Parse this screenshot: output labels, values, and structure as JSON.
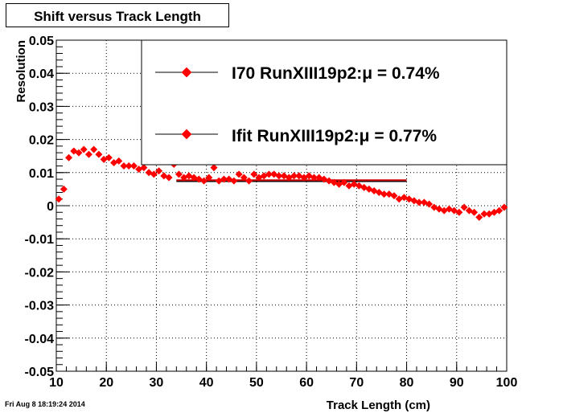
{
  "chart_data": {
    "type": "scatter",
    "title": "Shift versus Track Length",
    "xlabel": "Track Length (cm)",
    "ylabel": "Resolution",
    "xlim": [
      10,
      100
    ],
    "ylim": [
      -0.05,
      0.05
    ],
    "xticks": [
      "10",
      "20",
      "30",
      "40",
      "50",
      "60",
      "70",
      "80",
      "90",
      "100"
    ],
    "yticks": [
      "-0.05",
      "-0.04",
      "-0.03",
      "-0.02",
      "-0.01",
      "0",
      "0.01",
      "0.02",
      "0.03",
      "0.04",
      "0.05"
    ],
    "grid": true,
    "legend_position": "top-right",
    "datestamp": "Fri Aug  8 18:19:24 2014",
    "series": [
      {
        "name": "I70",
        "legend_label": "I70   RunXIII19p2:μ =  0.74%",
        "color": "#ff0000",
        "mean_line": {
          "y": 0.0074,
          "xrange": [
            34,
            80
          ]
        },
        "points": [
          [
            10.5,
            0.002
          ],
          [
            11.5,
            0.005
          ],
          [
            12.5,
            0.0145
          ],
          [
            13.5,
            0.0165
          ],
          [
            14.5,
            0.016
          ],
          [
            15.5,
            0.017
          ],
          [
            16.5,
            0.0155
          ],
          [
            17.5,
            0.017
          ],
          [
            18.5,
            0.0155
          ],
          [
            19.5,
            0.014
          ],
          [
            20.5,
            0.0145
          ],
          [
            21.5,
            0.013
          ],
          [
            22.5,
            0.0135
          ],
          [
            23.5,
            0.012
          ],
          [
            24.5,
            0.012
          ],
          [
            25.5,
            0.012
          ],
          [
            26.5,
            0.011
          ],
          [
            27.5,
            0.0115
          ],
          [
            28.5,
            0.01
          ],
          [
            29.5,
            0.0095
          ],
          [
            30.5,
            0.0105
          ],
          [
            31.5,
            0.009
          ],
          [
            32.5,
            0.0085
          ],
          [
            33.5,
            0.0125
          ],
          [
            34.5,
            0.0095
          ],
          [
            35.5,
            0.0085
          ],
          [
            36.5,
            0.009
          ],
          [
            37.5,
            0.0085
          ],
          [
            38.5,
            0.008
          ],
          [
            39.5,
            0.0075
          ],
          [
            40.5,
            0.0085
          ],
          [
            41.5,
            0.0115
          ],
          [
            42.5,
            0.0075
          ],
          [
            43.5,
            0.008
          ],
          [
            44.5,
            0.008
          ],
          [
            45.5,
            0.0075
          ],
          [
            46.5,
            0.0095
          ],
          [
            47.5,
            0.0085
          ],
          [
            48.5,
            0.0075
          ],
          [
            49.5,
            0.0095
          ],
          [
            50.5,
            0.0085
          ],
          [
            51.5,
            0.009
          ],
          [
            52.5,
            0.0095
          ],
          [
            53.5,
            0.0095
          ],
          [
            54.5,
            0.009
          ],
          [
            55.5,
            0.009
          ],
          [
            56.5,
            0.0085
          ],
          [
            57.5,
            0.009
          ],
          [
            58.5,
            0.009
          ],
          [
            59.5,
            0.0085
          ],
          [
            60.5,
            0.009
          ],
          [
            61.5,
            0.0085
          ],
          [
            62.5,
            0.0085
          ],
          [
            63.5,
            0.008
          ],
          [
            64.5,
            0.0075
          ],
          [
            65.5,
            0.007
          ],
          [
            66.5,
            0.0065
          ],
          [
            67.5,
            0.007
          ],
          [
            68.5,
            0.006
          ],
          [
            69.5,
            0.0065
          ],
          [
            70.5,
            0.006
          ],
          [
            71.5,
            0.0055
          ],
          [
            72.5,
            0.005
          ],
          [
            73.5,
            0.0045
          ],
          [
            74.5,
            0.004
          ],
          [
            75.5,
            0.0035
          ],
          [
            76.5,
            0.0035
          ],
          [
            77.5,
            0.003
          ],
          [
            78.5,
            0.002
          ],
          [
            79.5,
            0.0025
          ],
          [
            80.5,
            0.002
          ],
          [
            81.5,
            0.0015
          ],
          [
            82.5,
            0.001
          ],
          [
            83.5,
            0.001
          ],
          [
            84.5,
            0.0005
          ],
          [
            85.5,
            -0.0005
          ],
          [
            86.5,
            -0.001
          ],
          [
            87.5,
            -0.0015
          ],
          [
            88.5,
            -0.001
          ],
          [
            89.5,
            -0.0015
          ],
          [
            90.5,
            -0.002
          ],
          [
            91.5,
            -0.0005
          ],
          [
            92.5,
            -0.0015
          ],
          [
            93.5,
            -0.002
          ],
          [
            94.5,
            -0.0035
          ],
          [
            95.5,
            -0.0025
          ],
          [
            96.5,
            -0.0025
          ],
          [
            97.5,
            -0.002
          ],
          [
            98.5,
            -0.0015
          ],
          [
            99.5,
            -0.0005
          ]
        ]
      },
      {
        "name": "Ifit",
        "legend_label": "Ifit  RunXIII19p2:μ =  0.77%",
        "color": "#ff0000",
        "mean_line": {
          "y": 0.0077,
          "xrange": [
            34,
            80
          ]
        },
        "points": []
      }
    ]
  }
}
